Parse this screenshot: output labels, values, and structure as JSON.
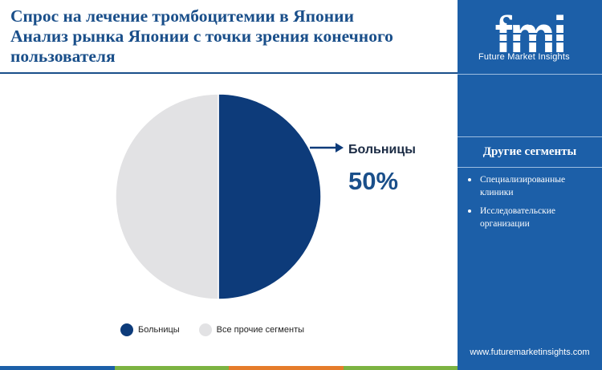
{
  "title": {
    "line1": "Спрос на лечение тромбоцитемии в Японии",
    "line2": "Анализ рынка Японии с точки зрения конечного",
    "line3": "пользователя"
  },
  "chart_data": {
    "type": "pie",
    "title": "Спрос на лечение тромбоцитемии в Японии Анализ рынка Японии с точки зрения конечного пользователя",
    "slices": [
      {
        "label": "Больницы",
        "value": 50,
        "color": "#0d3b7a"
      },
      {
        "label": "Все прочие сегменты",
        "value": 50,
        "color": "#e2e2e4"
      }
    ],
    "highlight": {
      "label": "Больницы",
      "value_text": "50%"
    },
    "legend_position": "bottom"
  },
  "legend": [
    {
      "label": "Больницы",
      "color": "#0d3b7a"
    },
    {
      "label": "Все прочие сегменты",
      "color": "#e2e2e4"
    }
  ],
  "sidebar": {
    "brand_mark": "fmi",
    "brand_name": "Future Market Insights",
    "heading": "Другие сегменты",
    "items": [
      "Специализированные клиники",
      "Исследовательские организации"
    ],
    "url": "www.futuremarketinsights.com",
    "background": "#1c5fa8"
  },
  "colors": {
    "title": "#1a4f8a",
    "accent_bar": [
      "#1c5fa8",
      "#7cb342",
      "#e57c2b",
      "#7cb342"
    ]
  }
}
